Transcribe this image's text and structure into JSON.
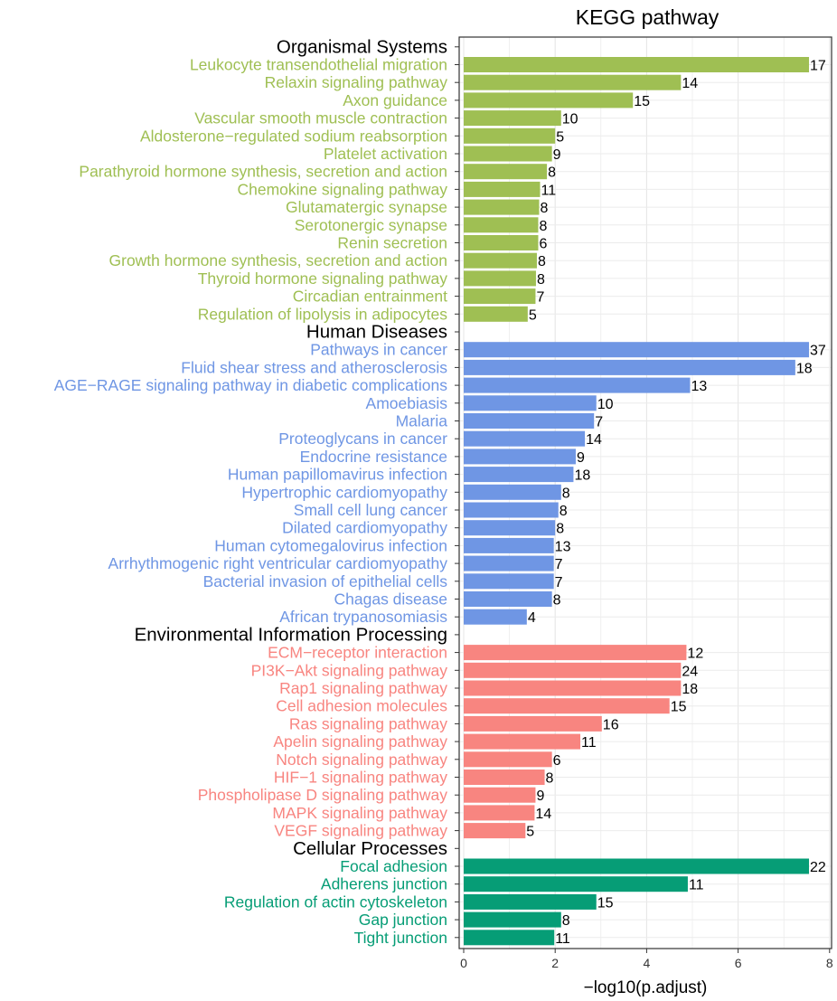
{
  "chart_data": {
    "type": "bar",
    "orientation": "horizontal",
    "title": "KEGG pathway",
    "xlabel": "−log10(p.adjust)",
    "ylabel": "",
    "xlim": [
      0,
      8
    ],
    "x_ticks": [
      0,
      2,
      4,
      6,
      8
    ],
    "grid": true,
    "groups": [
      {
        "name": "Organismal Systems",
        "color": "#9FBF53",
        "items": [
          {
            "label": "Leukocyte transendothelial migration",
            "value": 7.55,
            "count": "17"
          },
          {
            "label": "Relaxin signaling pathway",
            "value": 4.75,
            "count": "14"
          },
          {
            "label": "Axon guidance",
            "value": 3.7,
            "count": "15"
          },
          {
            "label": "Vascular smooth muscle contraction",
            "value": 2.13,
            "count": "10"
          },
          {
            "label": "Aldosterone−regulated sodium reabsorption",
            "value": 2.0,
            "count": "5"
          },
          {
            "label": "Platelet activation",
            "value": 1.93,
            "count": "9"
          },
          {
            "label": "Parathyroid hormone synthesis, secretion and action",
            "value": 1.82,
            "count": "8"
          },
          {
            "label": "Chemokine signaling pathway",
            "value": 1.67,
            "count": "11"
          },
          {
            "label": "Glutamatergic synapse",
            "value": 1.65,
            "count": "8"
          },
          {
            "label": "Serotonergic synapse",
            "value": 1.63,
            "count": "8"
          },
          {
            "label": "Renin secretion",
            "value": 1.63,
            "count": "6"
          },
          {
            "label": "Growth hormone synthesis, secretion and action",
            "value": 1.6,
            "count": "8"
          },
          {
            "label": "Thyroid hormone signaling pathway",
            "value": 1.58,
            "count": "8"
          },
          {
            "label": "Circadian entrainment",
            "value": 1.57,
            "count": "7"
          },
          {
            "label": "Regulation of lipolysis in adipocytes",
            "value": 1.4,
            "count": "5"
          }
        ]
      },
      {
        "name": "Human Diseases",
        "color": "#6F96E4",
        "items": [
          {
            "label": "Pathways in cancer",
            "value": 7.55,
            "count": "37"
          },
          {
            "label": "Fluid shear stress and atherosclerosis",
            "value": 7.25,
            "count": "18"
          },
          {
            "label": "AGE−RAGE signaling pathway in diabetic complications",
            "value": 4.95,
            "count": "13"
          },
          {
            "label": "Amoebiasis",
            "value": 2.9,
            "count": "10"
          },
          {
            "label": "Malaria",
            "value": 2.85,
            "count": "7"
          },
          {
            "label": "Proteoglycans in cancer",
            "value": 2.65,
            "count": "14"
          },
          {
            "label": "Endocrine resistance",
            "value": 2.45,
            "count": "9"
          },
          {
            "label": "Human papillomavirus infection",
            "value": 2.4,
            "count": "18"
          },
          {
            "label": "Hypertrophic cardiomyopathy",
            "value": 2.13,
            "count": "8"
          },
          {
            "label": "Small cell lung cancer",
            "value": 2.07,
            "count": "8"
          },
          {
            "label": "Dilated cardiomyopathy",
            "value": 2.0,
            "count": "8"
          },
          {
            "label": "Human cytomegalovirus infection",
            "value": 1.97,
            "count": "13"
          },
          {
            "label": "Arrhythmogenic right ventricular cardiomyopathy",
            "value": 1.97,
            "count": "7"
          },
          {
            "label": "Bacterial invasion of epithelial cells",
            "value": 1.97,
            "count": "7"
          },
          {
            "label": "Chagas disease",
            "value": 1.93,
            "count": "8"
          },
          {
            "label": "African trypanosomiasis",
            "value": 1.38,
            "count": "4"
          }
        ]
      },
      {
        "name": "Environmental Information Processing",
        "color": "#F88580",
        "items": [
          {
            "label": "ECM−receptor interaction",
            "value": 4.87,
            "count": "12"
          },
          {
            "label": "PI3K−Akt signaling pathway",
            "value": 4.75,
            "count": "24"
          },
          {
            "label": "Rap1 signaling pathway",
            "value": 4.75,
            "count": "18"
          },
          {
            "label": "Cell adhesion molecules",
            "value": 4.5,
            "count": "15"
          },
          {
            "label": "Ras signaling pathway",
            "value": 3.02,
            "count": "16"
          },
          {
            "label": "Apelin signaling pathway",
            "value": 2.55,
            "count": "11"
          },
          {
            "label": "Notch signaling pathway",
            "value": 1.93,
            "count": "6"
          },
          {
            "label": "HIF−1 signaling pathway",
            "value": 1.77,
            "count": "8"
          },
          {
            "label": "Phospholipase D signaling pathway",
            "value": 1.57,
            "count": "9"
          },
          {
            "label": "MAPK signaling pathway",
            "value": 1.55,
            "count": "14"
          },
          {
            "label": "VEGF signaling pathway",
            "value": 1.35,
            "count": "5"
          }
        ]
      },
      {
        "name": "Cellular Processes",
        "color": "#069D76",
        "items": [
          {
            "label": "Focal adhesion",
            "value": 7.55,
            "count": "22"
          },
          {
            "label": "Adherens junction",
            "value": 4.9,
            "count": "11"
          },
          {
            "label": "Regulation of actin cytoskeleton",
            "value": 2.9,
            "count": "15"
          },
          {
            "label": "Gap junction",
            "value": 2.13,
            "count": "8"
          },
          {
            "label": "Tight junction",
            "value": 1.98,
            "count": "11"
          }
        ]
      }
    ]
  }
}
